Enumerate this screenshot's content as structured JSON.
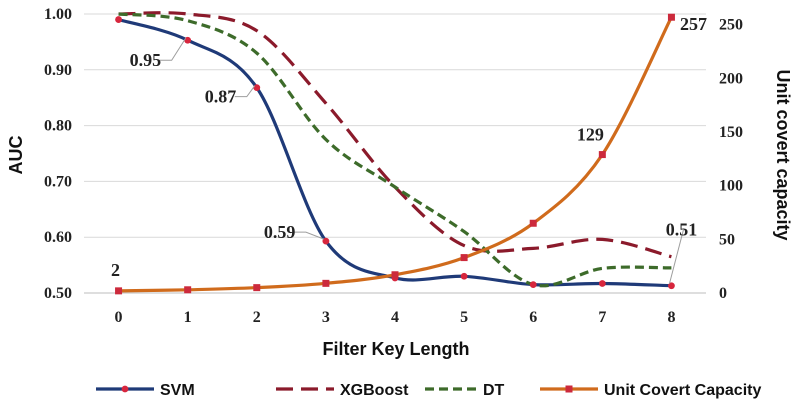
{
  "chart_data": {
    "type": "line",
    "x": [
      0,
      1,
      2,
      3,
      4,
      5,
      6,
      7,
      8
    ],
    "xlabel": "Filter Key Length",
    "ylabel": "AUC",
    "y2label": "Unit covert capacity",
    "ylim": [
      0.5,
      1.0
    ],
    "yticks": [
      "0.50",
      "0.60",
      "0.70",
      "0.80",
      "0.90",
      "1.00"
    ],
    "y2lim": [
      0,
      260
    ],
    "y2ticks": [
      "0",
      "50",
      "100",
      "150",
      "200",
      "250"
    ],
    "grid": "horizontal",
    "legend_position": "bottom",
    "series": [
      {
        "name": "SVM",
        "axis": "left",
        "color": "#1f3a78",
        "style": "solid",
        "marker": "dot",
        "values": [
          0.99,
          0.953,
          0.868,
          0.593,
          0.527,
          0.53,
          0.515,
          0.517,
          0.513
        ]
      },
      {
        "name": "XGBoost",
        "axis": "left",
        "color": "#8b1a2b",
        "style": "long-dash",
        "marker": "none",
        "values": [
          1.0,
          1.0,
          0.97,
          0.84,
          0.69,
          0.585,
          0.58,
          0.596,
          0.565
        ]
      },
      {
        "name": "DT",
        "axis": "left",
        "color": "#3d6b2a",
        "style": "short-dash",
        "marker": "none",
        "values": [
          1.0,
          0.988,
          0.93,
          0.775,
          0.69,
          0.61,
          0.515,
          0.544,
          0.545
        ]
      },
      {
        "name": "Unit Covert Capacity",
        "axis": "right",
        "color": "#d06b1c",
        "style": "solid",
        "marker": "square",
        "values": [
          2,
          3,
          5,
          9,
          17,
          33,
          65,
          129,
          257
        ]
      }
    ],
    "data_labels": [
      {
        "text": "0.95",
        "series": "SVM",
        "index": 1
      },
      {
        "text": "0.87",
        "series": "SVM",
        "index": 2
      },
      {
        "text": "0.59",
        "series": "SVM",
        "index": 3
      },
      {
        "text": "0.51",
        "series": "SVM",
        "index": 8
      },
      {
        "text": "2",
        "series": "Unit Covert Capacity",
        "index": 0
      },
      {
        "text": "129",
        "series": "Unit Covert Capacity",
        "index": 7
      },
      {
        "text": "257",
        "series": "Unit Covert Capacity",
        "index": 8
      }
    ]
  }
}
